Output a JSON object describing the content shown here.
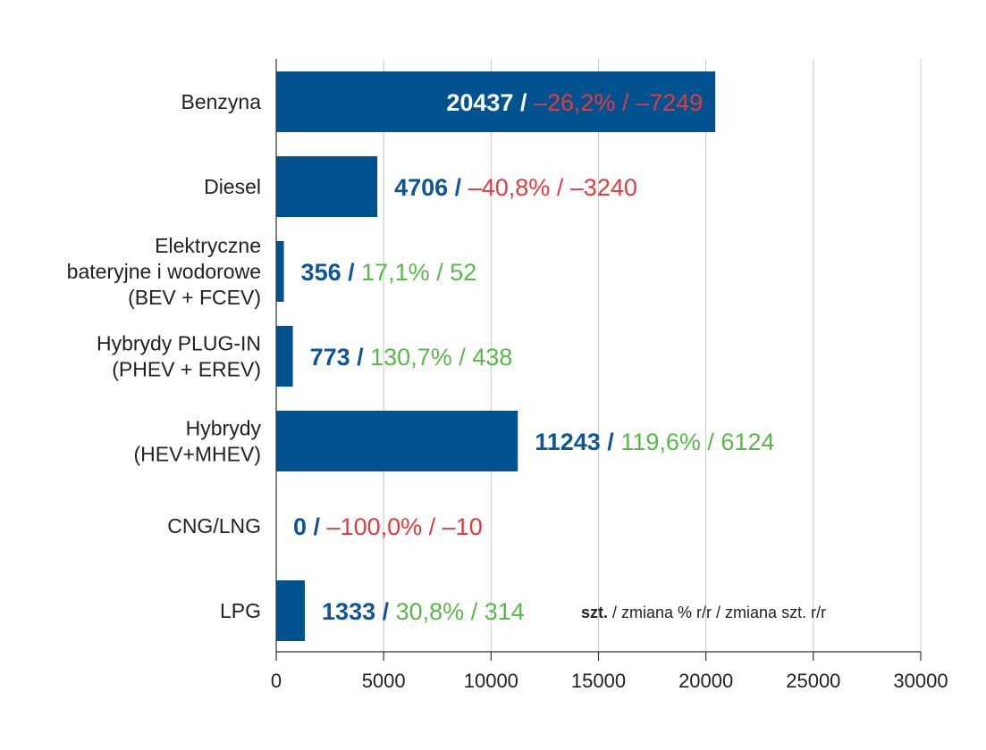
{
  "colors": {
    "bar": "#02528f",
    "value": "#0f5597",
    "negative": "#e23a3f",
    "positive": "#58b849",
    "grid": "#c8c8c8",
    "axis": "#333333"
  },
  "chart_data": {
    "type": "bar",
    "orientation": "horizontal",
    "categories": [
      [
        "Benzyna"
      ],
      [
        "Diesel"
      ],
      [
        "Elektryczne",
        "bateryjne i wodorowe",
        "(BEV + FCEV)"
      ],
      [
        "Hybrydy PLUG-IN",
        "(PHEV + EREV)"
      ],
      [
        "Hybrydy",
        "(HEV+MHEV)"
      ],
      [
        "CNG/LNG"
      ],
      [
        "LPG"
      ]
    ],
    "values": [
      20437,
      4706,
      356,
      773,
      11243,
      0,
      1333
    ],
    "change_pct": [
      "–26,2%",
      "–40,8%",
      "17,1%",
      "130,7%",
      "119,6%",
      "–100,0%",
      "30,8%"
    ],
    "change_units": [
      "–7249",
      "–3240",
      "52",
      "438",
      "6124",
      "–10",
      "314"
    ],
    "trend": [
      "negative",
      "negative",
      "positive",
      "positive",
      "positive",
      "negative",
      "positive"
    ],
    "value_label_inside": [
      true,
      false,
      false,
      false,
      false,
      false,
      false
    ],
    "xlim": [
      0,
      30000
    ],
    "xticks": [
      0,
      5000,
      10000,
      15000,
      20000,
      25000,
      30000
    ],
    "grid": true,
    "legend_note": {
      "bold": "szt.",
      "rest": " / zmiana % r/r / zmiana szt. r/r"
    }
  }
}
